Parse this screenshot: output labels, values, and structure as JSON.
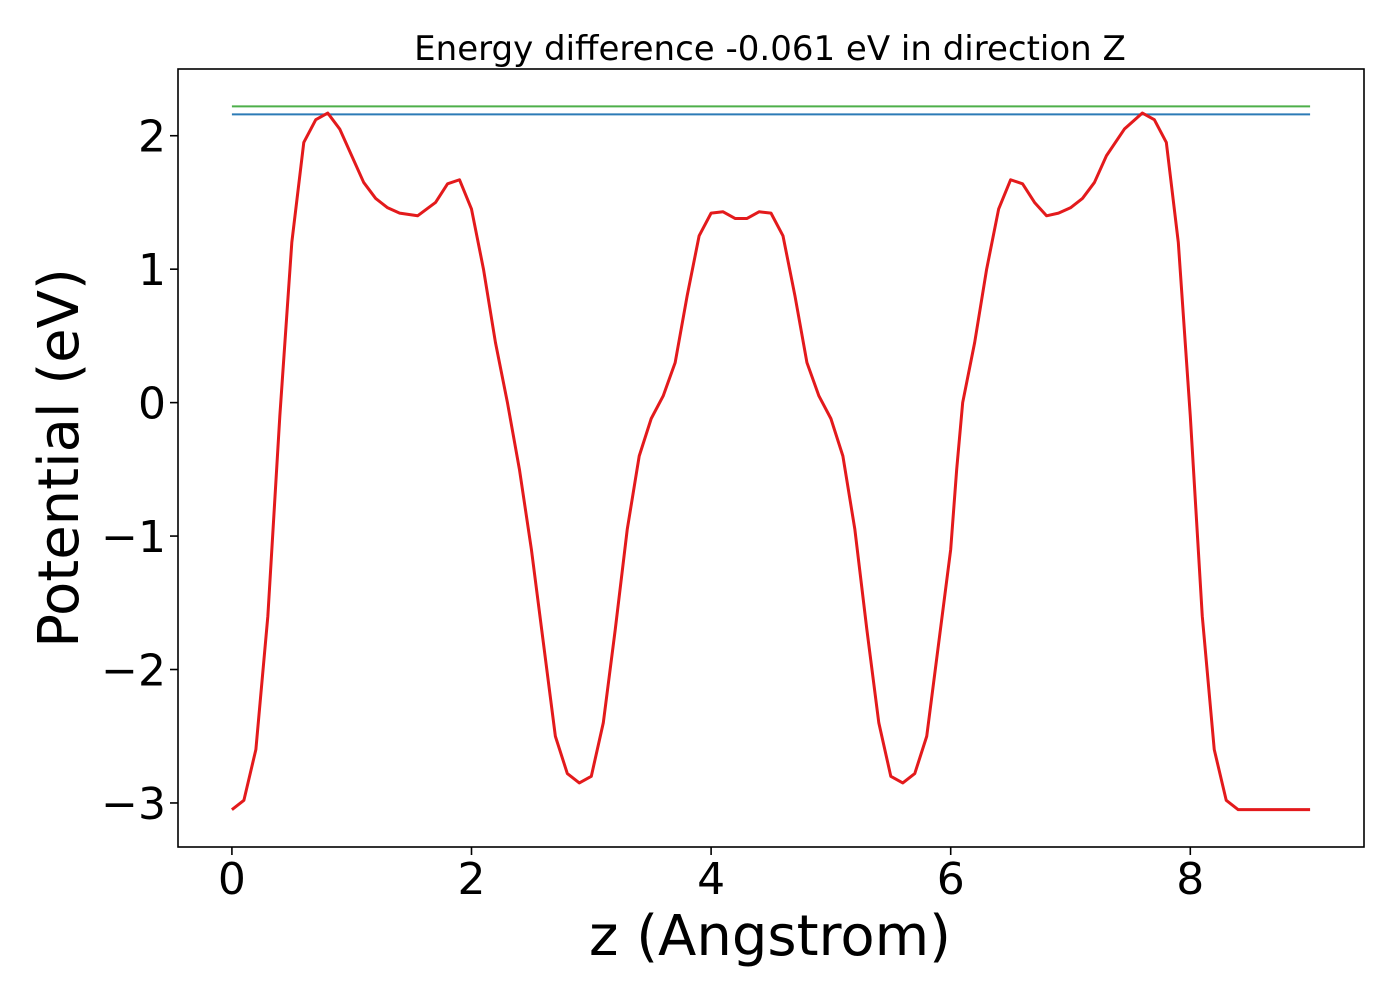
{
  "chart_data": {
    "type": "line",
    "title": "Energy difference -0.061 eV in direction Z",
    "xlabel": "z (Angstrom)",
    "ylabel": "Potential (eV)",
    "xlim": [
      -0.45,
      9.45
    ],
    "ylim": [
      -3.33,
      2.5
    ],
    "xticks": [
      0,
      2,
      4,
      6,
      8
    ],
    "yticks": [
      -3,
      -2,
      -1,
      0,
      1,
      2
    ],
    "xtick_labels": [
      "0",
      "2",
      "4",
      "6",
      "8"
    ],
    "ytick_labels": [
      "−3",
      "−2",
      "−1",
      "0",
      "1",
      "2"
    ],
    "grid": false,
    "legend": "none",
    "series": [
      {
        "color": "#e31a1c",
        "x": [
          0,
          0.1,
          0.2,
          0.3,
          0.4,
          0.5,
          0.6,
          0.7,
          0.8,
          0.9,
          1.0,
          1.1,
          1.2,
          1.3,
          1.4,
          1.55,
          1.7,
          1.8,
          1.9,
          2.0,
          2.1,
          2.2,
          2.3,
          2.4,
          2.5,
          2.6,
          2.7,
          2.8,
          2.9,
          3.0,
          3.1,
          3.2,
          3.3,
          3.4,
          3.5,
          3.6,
          3.7,
          3.8,
          3.9,
          4.0,
          4.1,
          4.2,
          4.3,
          4.4,
          4.5,
          4.6,
          4.7,
          4.8,
          4.9,
          5.0,
          5.1,
          5.2,
          5.3,
          5.4,
          5.5,
          5.6,
          5.7,
          5.8,
          5.9,
          6.0,
          6.05,
          6.1,
          6.2,
          6.3,
          6.4,
          6.5,
          6.6,
          6.7,
          6.8,
          6.9,
          7.0,
          7.1,
          7.2,
          7.3,
          7.45,
          7.6,
          7.7,
          7.8,
          7.9,
          8.0,
          8.1,
          8.2,
          8.3,
          8.4,
          8.5,
          8.6,
          8.7,
          8.8,
          8.9,
          9.0
        ],
        "y": [
          -3.05,
          -2.98,
          -2.6,
          -1.6,
          -0.1,
          1.2,
          1.95,
          2.12,
          2.17,
          2.05,
          1.85,
          1.65,
          1.53,
          1.46,
          1.42,
          1.4,
          1.5,
          1.64,
          1.67,
          1.45,
          1.0,
          0.45,
          0.0,
          -0.5,
          -1.1,
          -1.8,
          -2.5,
          -2.78,
          -2.85,
          -2.8,
          -2.4,
          -1.7,
          -0.95,
          -0.4,
          -0.12,
          0.05,
          0.3,
          0.8,
          1.25,
          1.42,
          1.43,
          1.38,
          1.38,
          1.43,
          1.42,
          1.25,
          0.8,
          0.3,
          0.05,
          -0.12,
          -0.4,
          -0.95,
          -1.7,
          -2.4,
          -2.8,
          -2.85,
          -2.78,
          -2.5,
          -1.8,
          -1.1,
          -0.5,
          0.0,
          0.45,
          1.0,
          1.45,
          1.67,
          1.64,
          1.5,
          1.4,
          1.42,
          1.46,
          1.53,
          1.65,
          1.85,
          2.05,
          2.17,
          2.12,
          1.95,
          1.2,
          -0.1,
          -1.6,
          -2.6,
          -2.98,
          -3.05,
          -3.05,
          -3.05,
          -3.05,
          -3.05,
          -3.05,
          -3.05
        ]
      },
      {
        "color": "#2c7bb6",
        "x": [
          0,
          9
        ],
        "y": [
          2.16,
          2.16
        ]
      },
      {
        "color": "#4daf4a",
        "x": [
          0,
          9
        ],
        "y": [
          2.22,
          2.22
        ]
      }
    ]
  }
}
